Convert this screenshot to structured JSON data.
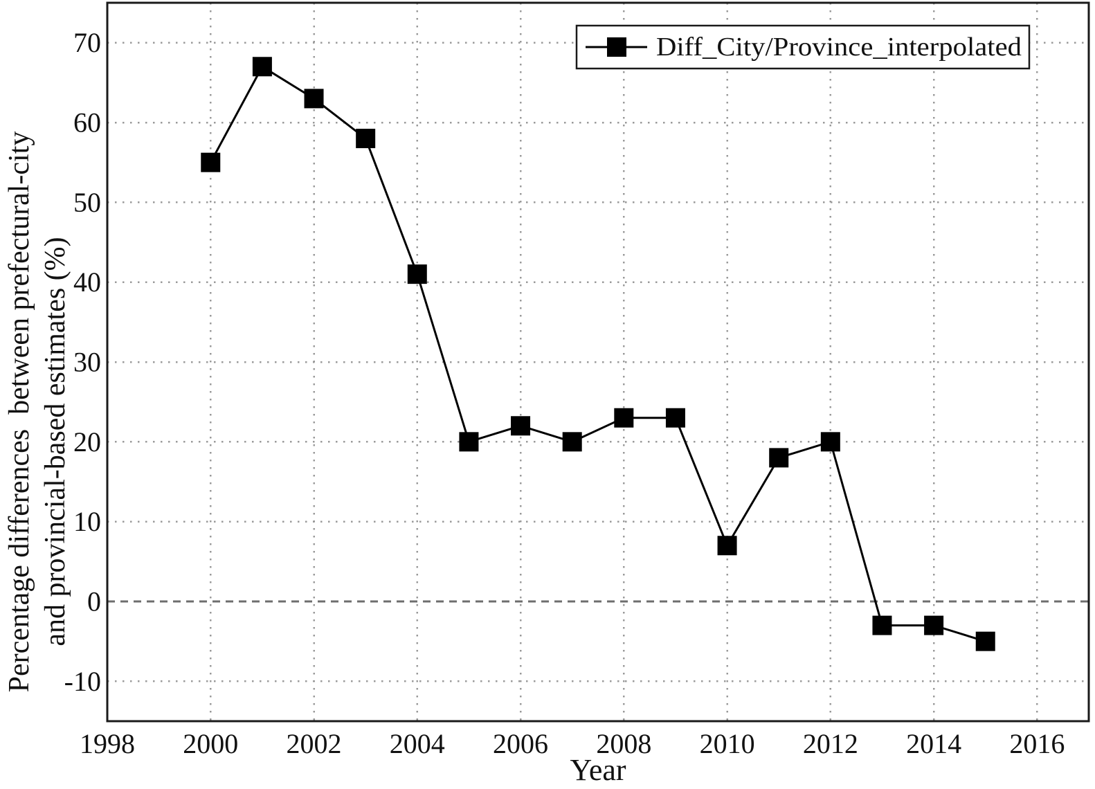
{
  "chart_data": {
    "type": "line",
    "title": "",
    "xlabel": "Year",
    "ylabel_lines": [
      "Percentage differences  between prefectural-city",
      "and provincial-based estimates (%)"
    ],
    "series": [
      {
        "name": "Diff_City/Province_interpolated",
        "marker": "filled-square",
        "color": "#000000",
        "x": [
          2000,
          2001,
          2002,
          2003,
          2004,
          2005,
          2006,
          2007,
          2008,
          2009,
          2010,
          2011,
          2012,
          2013,
          2014,
          2015
        ],
        "values": [
          55,
          67,
          63,
          58,
          41,
          20,
          22,
          20,
          23,
          23,
          7,
          18,
          20,
          -3,
          -3,
          -5
        ]
      }
    ],
    "xlim": [
      1998,
      2017
    ],
    "ylim": [
      -15,
      75
    ],
    "x_ticks": [
      1998,
      2000,
      2002,
      2004,
      2006,
      2008,
      2010,
      2012,
      2014,
      2016
    ],
    "y_ticks": [
      70,
      60,
      50,
      40,
      30,
      20,
      10,
      0,
      -10
    ],
    "grid": {
      "style": "dotted",
      "color": "#9a9a9a",
      "zero_line_style": "dashed",
      "zero_line_color": "#6e6e6e"
    },
    "legend": {
      "position": "top-right",
      "entries": [
        "Diff_City/Province_interpolated"
      ]
    },
    "colors": {
      "line": "#000000",
      "axis": "#1a1a1a",
      "background": "#ffffff"
    }
  }
}
